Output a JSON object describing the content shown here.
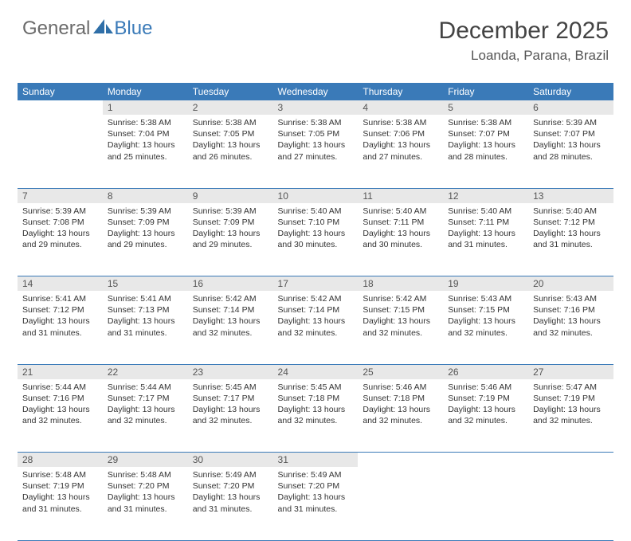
{
  "logo": {
    "general": "General",
    "blue": "Blue"
  },
  "title": "December 2025",
  "location": "Loanda, Parana, Brazil",
  "colors": {
    "header_bg": "#3a7ab8",
    "header_text": "#ffffff",
    "daynum_bg": "#e8e8e8",
    "row_divider": "#3a7ab8",
    "text": "#333333",
    "title_text": "#444444",
    "logo_gray": "#6b6b6b",
    "logo_blue": "#3a7ab8"
  },
  "weekdays": [
    "Sunday",
    "Monday",
    "Tuesday",
    "Wednesday",
    "Thursday",
    "Friday",
    "Saturday"
  ],
  "weeks": [
    {
      "nums": [
        "",
        "1",
        "2",
        "3",
        "4",
        "5",
        "6"
      ],
      "cells": [
        null,
        {
          "sunrise": "Sunrise: 5:38 AM",
          "sunset": "Sunset: 7:04 PM",
          "day1": "Daylight: 13 hours",
          "day2": "and 25 minutes."
        },
        {
          "sunrise": "Sunrise: 5:38 AM",
          "sunset": "Sunset: 7:05 PM",
          "day1": "Daylight: 13 hours",
          "day2": "and 26 minutes."
        },
        {
          "sunrise": "Sunrise: 5:38 AM",
          "sunset": "Sunset: 7:05 PM",
          "day1": "Daylight: 13 hours",
          "day2": "and 27 minutes."
        },
        {
          "sunrise": "Sunrise: 5:38 AM",
          "sunset": "Sunset: 7:06 PM",
          "day1": "Daylight: 13 hours",
          "day2": "and 27 minutes."
        },
        {
          "sunrise": "Sunrise: 5:38 AM",
          "sunset": "Sunset: 7:07 PM",
          "day1": "Daylight: 13 hours",
          "day2": "and 28 minutes."
        },
        {
          "sunrise": "Sunrise: 5:39 AM",
          "sunset": "Sunset: 7:07 PM",
          "day1": "Daylight: 13 hours",
          "day2": "and 28 minutes."
        }
      ]
    },
    {
      "nums": [
        "7",
        "8",
        "9",
        "10",
        "11",
        "12",
        "13"
      ],
      "cells": [
        {
          "sunrise": "Sunrise: 5:39 AM",
          "sunset": "Sunset: 7:08 PM",
          "day1": "Daylight: 13 hours",
          "day2": "and 29 minutes."
        },
        {
          "sunrise": "Sunrise: 5:39 AM",
          "sunset": "Sunset: 7:09 PM",
          "day1": "Daylight: 13 hours",
          "day2": "and 29 minutes."
        },
        {
          "sunrise": "Sunrise: 5:39 AM",
          "sunset": "Sunset: 7:09 PM",
          "day1": "Daylight: 13 hours",
          "day2": "and 29 minutes."
        },
        {
          "sunrise": "Sunrise: 5:40 AM",
          "sunset": "Sunset: 7:10 PM",
          "day1": "Daylight: 13 hours",
          "day2": "and 30 minutes."
        },
        {
          "sunrise": "Sunrise: 5:40 AM",
          "sunset": "Sunset: 7:11 PM",
          "day1": "Daylight: 13 hours",
          "day2": "and 30 minutes."
        },
        {
          "sunrise": "Sunrise: 5:40 AM",
          "sunset": "Sunset: 7:11 PM",
          "day1": "Daylight: 13 hours",
          "day2": "and 31 minutes."
        },
        {
          "sunrise": "Sunrise: 5:40 AM",
          "sunset": "Sunset: 7:12 PM",
          "day1": "Daylight: 13 hours",
          "day2": "and 31 minutes."
        }
      ]
    },
    {
      "nums": [
        "14",
        "15",
        "16",
        "17",
        "18",
        "19",
        "20"
      ],
      "cells": [
        {
          "sunrise": "Sunrise: 5:41 AM",
          "sunset": "Sunset: 7:12 PM",
          "day1": "Daylight: 13 hours",
          "day2": "and 31 minutes."
        },
        {
          "sunrise": "Sunrise: 5:41 AM",
          "sunset": "Sunset: 7:13 PM",
          "day1": "Daylight: 13 hours",
          "day2": "and 31 minutes."
        },
        {
          "sunrise": "Sunrise: 5:42 AM",
          "sunset": "Sunset: 7:14 PM",
          "day1": "Daylight: 13 hours",
          "day2": "and 32 minutes."
        },
        {
          "sunrise": "Sunrise: 5:42 AM",
          "sunset": "Sunset: 7:14 PM",
          "day1": "Daylight: 13 hours",
          "day2": "and 32 minutes."
        },
        {
          "sunrise": "Sunrise: 5:42 AM",
          "sunset": "Sunset: 7:15 PM",
          "day1": "Daylight: 13 hours",
          "day2": "and 32 minutes."
        },
        {
          "sunrise": "Sunrise: 5:43 AM",
          "sunset": "Sunset: 7:15 PM",
          "day1": "Daylight: 13 hours",
          "day2": "and 32 minutes."
        },
        {
          "sunrise": "Sunrise: 5:43 AM",
          "sunset": "Sunset: 7:16 PM",
          "day1": "Daylight: 13 hours",
          "day2": "and 32 minutes."
        }
      ]
    },
    {
      "nums": [
        "21",
        "22",
        "23",
        "24",
        "25",
        "26",
        "27"
      ],
      "cells": [
        {
          "sunrise": "Sunrise: 5:44 AM",
          "sunset": "Sunset: 7:16 PM",
          "day1": "Daylight: 13 hours",
          "day2": "and 32 minutes."
        },
        {
          "sunrise": "Sunrise: 5:44 AM",
          "sunset": "Sunset: 7:17 PM",
          "day1": "Daylight: 13 hours",
          "day2": "and 32 minutes."
        },
        {
          "sunrise": "Sunrise: 5:45 AM",
          "sunset": "Sunset: 7:17 PM",
          "day1": "Daylight: 13 hours",
          "day2": "and 32 minutes."
        },
        {
          "sunrise": "Sunrise: 5:45 AM",
          "sunset": "Sunset: 7:18 PM",
          "day1": "Daylight: 13 hours",
          "day2": "and 32 minutes."
        },
        {
          "sunrise": "Sunrise: 5:46 AM",
          "sunset": "Sunset: 7:18 PM",
          "day1": "Daylight: 13 hours",
          "day2": "and 32 minutes."
        },
        {
          "sunrise": "Sunrise: 5:46 AM",
          "sunset": "Sunset: 7:19 PM",
          "day1": "Daylight: 13 hours",
          "day2": "and 32 minutes."
        },
        {
          "sunrise": "Sunrise: 5:47 AM",
          "sunset": "Sunset: 7:19 PM",
          "day1": "Daylight: 13 hours",
          "day2": "and 32 minutes."
        }
      ]
    },
    {
      "nums": [
        "28",
        "29",
        "30",
        "31",
        "",
        "",
        ""
      ],
      "cells": [
        {
          "sunrise": "Sunrise: 5:48 AM",
          "sunset": "Sunset: 7:19 PM",
          "day1": "Daylight: 13 hours",
          "day2": "and 31 minutes."
        },
        {
          "sunrise": "Sunrise: 5:48 AM",
          "sunset": "Sunset: 7:20 PM",
          "day1": "Daylight: 13 hours",
          "day2": "and 31 minutes."
        },
        {
          "sunrise": "Sunrise: 5:49 AM",
          "sunset": "Sunset: 7:20 PM",
          "day1": "Daylight: 13 hours",
          "day2": "and 31 minutes."
        },
        {
          "sunrise": "Sunrise: 5:49 AM",
          "sunset": "Sunset: 7:20 PM",
          "day1": "Daylight: 13 hours",
          "day2": "and 31 minutes."
        },
        null,
        null,
        null
      ]
    }
  ]
}
